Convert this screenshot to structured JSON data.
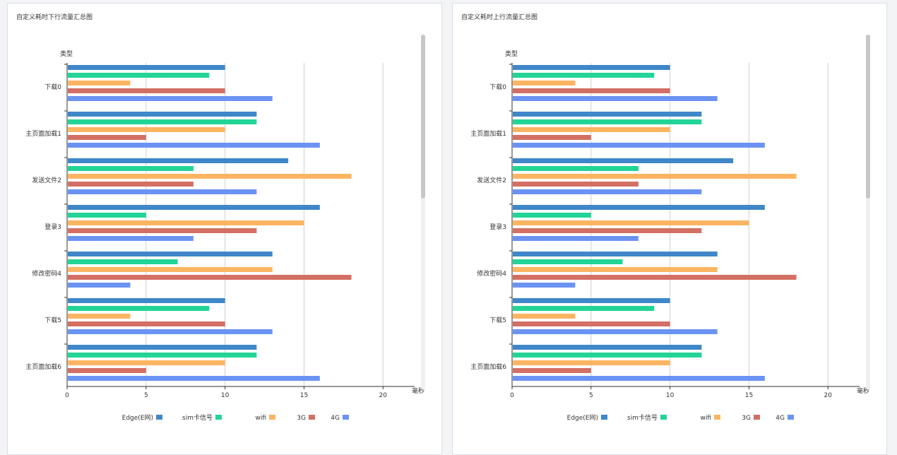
{
  "colors": {
    "series": [
      "#3f87c8",
      "#22d495",
      "#fbb562",
      "#d46f63",
      "#6b93f3"
    ],
    "grid": "#d0d0d0",
    "axis": "#333333"
  },
  "chart_data": [
    {
      "type": "bar",
      "orientation": "horizontal",
      "title": "自定义耗时下行流量汇总图",
      "xlabel": "毫秒",
      "ylabel": "类型",
      "xlim": [
        0,
        22
      ],
      "xticks": [
        0,
        5,
        10,
        15,
        20
      ],
      "categories": [
        "下载0",
        "主页面加载1",
        "发送文件2",
        "登录3",
        "修改密码4",
        "下载5",
        "主页面加载6"
      ],
      "series": [
        {
          "name": "Edge(E网)",
          "values": [
            10,
            12,
            14,
            16,
            13,
            10,
            12
          ]
        },
        {
          "name": "sim卡信号",
          "values": [
            9,
            12,
            8,
            5,
            7,
            9,
            12
          ]
        },
        {
          "name": "wifi",
          "values": [
            4,
            10,
            18,
            15,
            13,
            4,
            10
          ]
        },
        {
          "name": "3G",
          "values": [
            10,
            5,
            8,
            12,
            18,
            10,
            5
          ]
        },
        {
          "name": "4G",
          "values": [
            13,
            16,
            12,
            8,
            4,
            13,
            16
          ]
        }
      ],
      "grid": true,
      "legend": "bottom"
    },
    {
      "type": "bar",
      "orientation": "horizontal",
      "title": "自定义耗时上行流量汇总图",
      "xlabel": "毫秒",
      "ylabel": "类型",
      "xlim": [
        0,
        22
      ],
      "xticks": [
        0,
        5,
        10,
        15,
        20
      ],
      "categories": [
        "下载0",
        "主页面加载1",
        "发送文件2",
        "登录3",
        "修改密码4",
        "下载5",
        "主页面加载6"
      ],
      "series": [
        {
          "name": "Edge(E网)",
          "values": [
            10,
            12,
            14,
            16,
            13,
            10,
            12
          ]
        },
        {
          "name": "sim卡信号",
          "values": [
            9,
            12,
            8,
            5,
            7,
            9,
            12
          ]
        },
        {
          "name": "wifi",
          "values": [
            4,
            10,
            18,
            15,
            13,
            4,
            10
          ]
        },
        {
          "name": "3G",
          "values": [
            10,
            5,
            8,
            12,
            18,
            10,
            5
          ]
        },
        {
          "name": "4G",
          "values": [
            13,
            16,
            12,
            8,
            4,
            13,
            16
          ]
        }
      ],
      "grid": true,
      "legend": "bottom"
    }
  ]
}
